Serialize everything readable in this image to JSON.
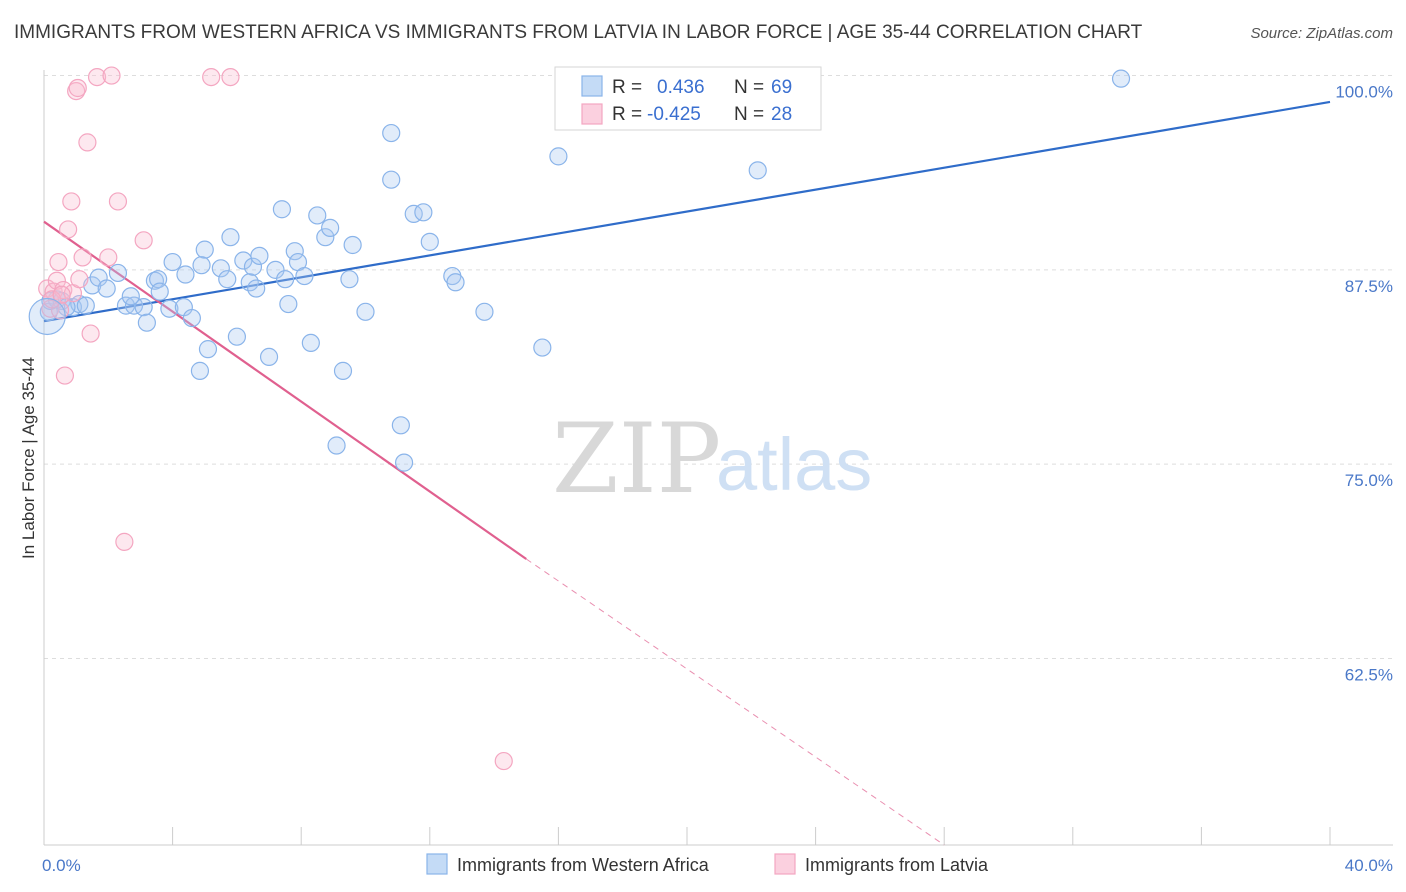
{
  "chart_data": {
    "type": "scatter",
    "title": "IMMIGRANTS FROM WESTERN AFRICA VS IMMIGRANTS FROM LATVIA IN LABOR FORCE | AGE 35-44 CORRELATION CHART",
    "source": "Source: ZipAtlas.com",
    "xlabel": "",
    "ylabel": "In Labor Force | Age 35-44",
    "xlim": [
      0,
      40
    ],
    "ylim": [
      50.5,
      101
    ],
    "x_tick_labels": [
      {
        "value": 0,
        "label": "0.0%"
      },
      {
        "value": 40,
        "label": "40.0%"
      }
    ],
    "y_tick_labels": [
      {
        "value": 62.5,
        "label": "62.5%"
      },
      {
        "value": 75.0,
        "label": "75.0%"
      },
      {
        "value": 87.5,
        "label": "87.5%"
      },
      {
        "value": 100.0,
        "label": "100.0%"
      }
    ],
    "grid": true,
    "legend_position": "top-center",
    "watermark": {
      "zip": "ZIP",
      "atlas": "atlas"
    },
    "series": [
      {
        "name": "Immigrants from Western Africa",
        "color": "#8ab4ea",
        "line_color": "#2f6cc9",
        "r_label": "R =",
        "r_value": "0.436",
        "n_label": "N =",
        "n_value": "69",
        "trend": {
          "x": [
            0,
            40
          ],
          "y": [
            84.2,
            98.3
          ],
          "dashed_from": null
        },
        "points": [
          [
            0.15,
            84.8
          ],
          [
            0.4,
            85.6
          ],
          [
            0.55,
            85.5
          ],
          [
            0.9,
            85.1
          ],
          [
            1.1,
            85.3
          ],
          [
            1.5,
            86.5
          ],
          [
            1.7,
            87.0
          ],
          [
            1.95,
            86.3
          ],
          [
            2.3,
            87.3
          ],
          [
            2.55,
            85.2
          ],
          [
            2.8,
            85.2
          ],
          [
            3.1,
            85.1
          ],
          [
            3.2,
            84.1
          ],
          [
            3.45,
            86.8
          ],
          [
            3.55,
            86.9
          ],
          [
            3.9,
            85.0
          ],
          [
            4.0,
            88.0
          ],
          [
            4.35,
            85.1
          ],
          [
            4.4,
            87.2
          ],
          [
            4.6,
            84.4
          ],
          [
            4.85,
            81.0
          ],
          [
            5.0,
            88.8
          ],
          [
            5.1,
            82.4
          ],
          [
            5.5,
            87.6
          ],
          [
            5.7,
            86.9
          ],
          [
            5.8,
            89.6
          ],
          [
            6.0,
            83.2
          ],
          [
            6.2,
            88.1
          ],
          [
            6.4,
            86.7
          ],
          [
            6.5,
            87.7
          ],
          [
            6.7,
            88.4
          ],
          [
            7.0,
            81.9
          ],
          [
            7.2,
            87.5
          ],
          [
            7.4,
            91.4
          ],
          [
            7.6,
            85.3
          ],
          [
            7.8,
            88.7
          ],
          [
            7.9,
            88.0
          ],
          [
            8.1,
            87.1
          ],
          [
            8.3,
            82.8
          ],
          [
            8.5,
            91.0
          ],
          [
            8.75,
            89.6
          ],
          [
            8.9,
            90.2
          ],
          [
            9.1,
            76.2
          ],
          [
            9.3,
            81.0
          ],
          [
            9.5,
            86.9
          ],
          [
            9.6,
            89.1
          ],
          [
            10.0,
            84.8
          ],
          [
            10.8,
            96.3
          ],
          [
            10.8,
            93.3
          ],
          [
            11.1,
            77.5
          ],
          [
            11.2,
            75.1
          ],
          [
            11.5,
            91.1
          ],
          [
            11.8,
            91.2
          ],
          [
            12.0,
            89.3
          ],
          [
            12.7,
            87.1
          ],
          [
            12.8,
            86.7
          ],
          [
            13.7,
            84.8
          ],
          [
            15.5,
            82.5
          ],
          [
            16.0,
            94.8
          ],
          [
            22.2,
            93.9
          ],
          [
            33.5,
            99.8
          ],
          [
            0.2,
            85.5
          ],
          [
            0.7,
            85.1
          ],
          [
            1.3,
            85.2
          ],
          [
            2.7,
            85.8
          ],
          [
            3.6,
            86.1
          ],
          [
            4.9,
            87.8
          ],
          [
            6.6,
            86.3
          ],
          [
            7.5,
            86.9
          ]
        ]
      },
      {
        "name": "Immigrants from Latvia",
        "color": "#f4a6c1",
        "line_color": "#e0608f",
        "r_label": "R =",
        "r_value": "-0.425",
        "n_label": "N =",
        "n_value": "28",
        "trend": {
          "x": [
            0,
            15.0,
            28.0
          ],
          "y": [
            90.6,
            68.9,
            50.5
          ],
          "dashed_from": 15.0
        },
        "points": [
          [
            0.1,
            86.3
          ],
          [
            0.2,
            85.0
          ],
          [
            0.3,
            86.1
          ],
          [
            0.4,
            86.8
          ],
          [
            0.45,
            88.0
          ],
          [
            0.5,
            84.9
          ],
          [
            0.6,
            86.2
          ],
          [
            0.65,
            80.7
          ],
          [
            0.75,
            90.1
          ],
          [
            0.85,
            91.9
          ],
          [
            0.9,
            86.0
          ],
          [
            1.0,
            99.0
          ],
          [
            1.05,
            99.2
          ],
          [
            1.1,
            86.9
          ],
          [
            1.2,
            88.3
          ],
          [
            1.35,
            95.7
          ],
          [
            1.45,
            83.4
          ],
          [
            1.65,
            99.9
          ],
          [
            2.0,
            88.3
          ],
          [
            2.1,
            100.0
          ],
          [
            2.3,
            91.9
          ],
          [
            2.5,
            70.0
          ],
          [
            3.1,
            89.4
          ],
          [
            5.2,
            99.9
          ],
          [
            5.8,
            99.9
          ],
          [
            14.3,
            55.9
          ],
          [
            0.25,
            85.6
          ],
          [
            0.55,
            85.9
          ]
        ]
      }
    ]
  }
}
